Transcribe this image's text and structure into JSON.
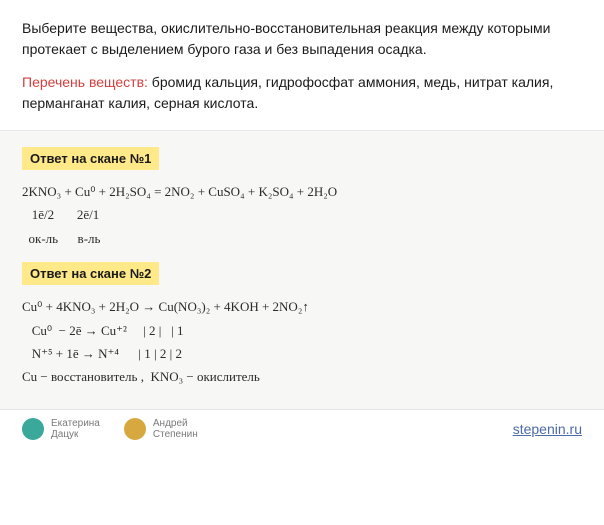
{
  "question": {
    "text": "Выберите вещества, окислительно-восстановительная реакция между которыми протекает с выделением бурого газа и без выпадения осадка.",
    "substances_label": "Перечень веществ:",
    "substances_text": " бромид кальция, гидрофосфат аммония, медь, нитрат калия, перманганат калия, серная кислота."
  },
  "answers": [
    {
      "title": "Ответ на скане №1",
      "lines": [
        "2KNO₃ + Cu⁰ + 2H₂SO₄ = 2NO₂ + CuSO₄ + K₂SO₄ + 2H₂O",
        "   1ē/2       2ē/1",
        "  ок-ль      в-ль"
      ]
    },
    {
      "title": "Ответ на скане №2",
      "lines": [
        "Cu⁰ + 4KNO₃ + 2H₂O → Cu(NO₃)₂ + 4KOH + 2NO₂↑",
        "   Cu⁰  − 2ē → Cu⁺²     | 2 |   | 1",
        "   N⁺⁵ + 1ē → N⁺⁴      | 1 | 2 | 2",
        "Cu − восстановитель ,  KNO₃ − окислитель"
      ]
    }
  ],
  "footer": {
    "authors": [
      {
        "first": "Екатерина",
        "last": "Дацук"
      },
      {
        "first": "Андрей",
        "last": "Степенин"
      }
    ],
    "site": "stepenin.ru"
  }
}
